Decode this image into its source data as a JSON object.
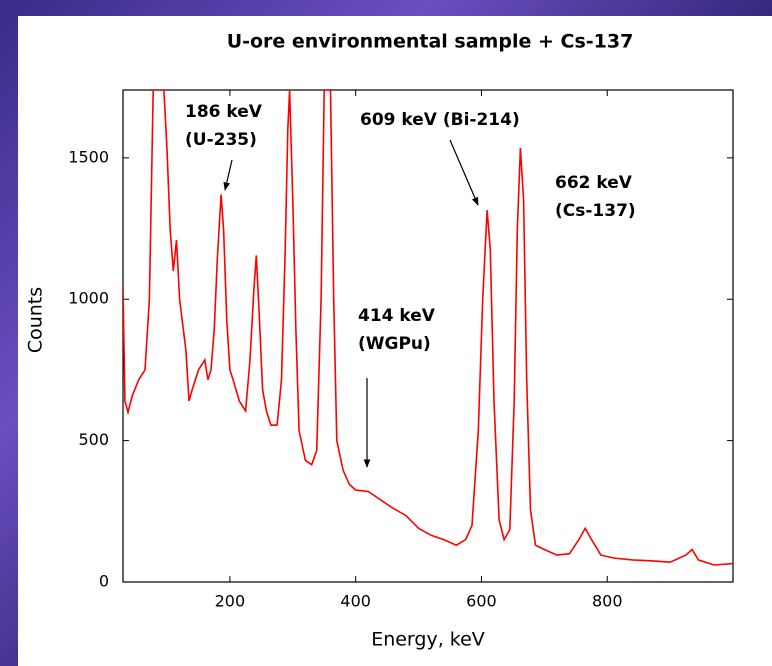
{
  "chart_data": {
    "type": "line",
    "title": "U-ore environmental sample + Cs-137",
    "x_label": "Energy, keV",
    "y_label": "Counts",
    "xlim": [
      30,
      1000
    ],
    "ylim": [
      0,
      1740
    ],
    "xticks": [
      200,
      400,
      600,
      800
    ],
    "yticks": [
      0,
      500,
      1000,
      1500
    ],
    "x": [
      30,
      33,
      38,
      45,
      55,
      65,
      72,
      78,
      82,
      90,
      95,
      100,
      105,
      110,
      115,
      120,
      130,
      135,
      140,
      150,
      160,
      165,
      170,
      175,
      180,
      186,
      190,
      195,
      200,
      205,
      215,
      225,
      232,
      238,
      242,
      247,
      252,
      258,
      265,
      275,
      282,
      288,
      292,
      295,
      300,
      305,
      310,
      320,
      330,
      338,
      345,
      350,
      360,
      365,
      370,
      380,
      390,
      400,
      420,
      440,
      460,
      480,
      500,
      520,
      540,
      560,
      575,
      585,
      595,
      602,
      609,
      614,
      620,
      628,
      636,
      645,
      652,
      657,
      662,
      667,
      672,
      678,
      686,
      700,
      720,
      740,
      755,
      765,
      775,
      790,
      810,
      840,
      870,
      900,
      925,
      935,
      945,
      970,
      1000
    ],
    "series": [
      {
        "name": "Counts",
        "color": "#ff0000",
        "values": [
          1050,
          640,
          600,
          660,
          715,
          750,
          1000,
          1740,
          1740,
          1740,
          1740,
          1530,
          1245,
          1100,
          1210,
          1000,
          820,
          640,
          680,
          750,
          785,
          715,
          750,
          890,
          1140,
          1370,
          1245,
          925,
          750,
          715,
          640,
          605,
          785,
          1030,
          1155,
          925,
          680,
          605,
          555,
          555,
          715,
          1175,
          1600,
          1740,
          1350,
          890,
          535,
          430,
          415,
          465,
          1000,
          1740,
          1740,
          1000,
          500,
          395,
          345,
          325,
          320,
          290,
          260,
          235,
          190,
          165,
          150,
          130,
          150,
          200,
          535,
          1000,
          1315,
          1175,
          640,
          220,
          150,
          185,
          640,
          1245,
          1535,
          1350,
          715,
          255,
          130,
          115,
          95,
          100,
          150,
          190,
          150,
          95,
          85,
          78,
          75,
          70,
          95,
          115,
          78,
          60,
          65
        ]
      }
    ],
    "annotations": [
      {
        "lines": [
          "186 keV",
          "(U-235)"
        ]
      },
      {
        "lines": [
          "609 keV (Bi-214)"
        ]
      },
      {
        "lines": [
          "662 keV",
          "(Cs-137)"
        ]
      },
      {
        "lines": [
          "414 keV",
          "(WGPu)"
        ]
      }
    ]
  }
}
